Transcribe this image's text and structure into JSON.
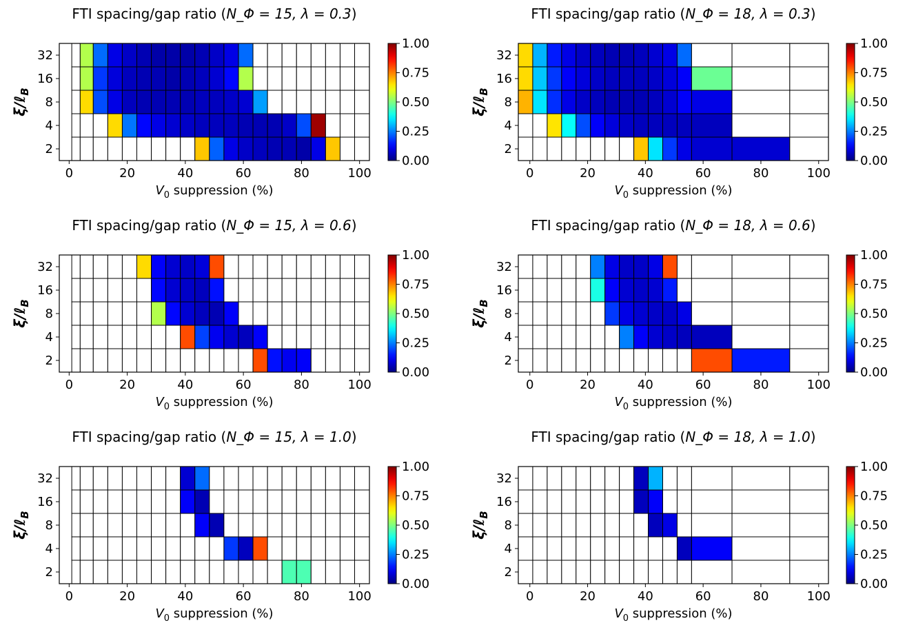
{
  "figure": {
    "colormap": "jet",
    "colorbar": {
      "min": 0,
      "max": 1,
      "ticks": [
        "1.00",
        "0.75",
        "0.50",
        "0.25",
        "0.00"
      ]
    },
    "x_ticks": [
      "0",
      "20",
      "40",
      "60",
      "80",
      "100"
    ],
    "y_ticks": [
      "32",
      "16",
      "8",
      "4",
      "2"
    ]
  },
  "chart_data": [
    {
      "type": "heatmap",
      "title_prefix": "FTI spacing/gap ratio (",
      "title_math": "N_Φ = 15, λ = 0.3",
      "title_suffix": ")",
      "N_phi": 15,
      "lambda": 0.3,
      "xlabel": "V_0 suppression (%)",
      "ylabel": "ξ/ℓ_B",
      "xlim": [
        -3.4,
        103.4
      ],
      "x_edges": [
        0.9,
        3.8,
        8.3,
        13.3,
        18.3,
        23.3,
        28.3,
        33.3,
        38.3,
        43.3,
        48.3,
        53.3,
        58.3,
        63.3,
        68.3,
        73.3,
        78.3,
        83.3,
        88.3,
        93.3,
        98.3,
        103.4
      ],
      "rows": [
        "32",
        "16",
        "8",
        "4",
        "2"
      ],
      "values": [
        [
          null,
          0.55,
          0.23,
          0.1,
          0.07,
          0.05,
          0.04,
          0.04,
          0.04,
          0.05,
          0.07,
          0.1,
          0.23,
          null,
          null,
          null,
          null,
          null,
          null,
          null,
          null
        ],
        [
          null,
          0.55,
          0.18,
          0.09,
          0.06,
          0.05,
          0.05,
          0.04,
          0.05,
          0.06,
          0.08,
          0.13,
          0.55,
          null,
          null,
          null,
          null,
          null,
          null,
          null,
          null
        ],
        [
          null,
          0.66,
          0.2,
          0.1,
          0.06,
          0.05,
          0.05,
          0.05,
          0.05,
          0.06,
          0.06,
          0.07,
          0.08,
          0.28,
          null,
          null,
          null,
          null,
          null,
          null,
          null
        ],
        [
          null,
          null,
          null,
          0.66,
          0.24,
          0.13,
          0.1,
          0.08,
          0.07,
          0.06,
          0.06,
          0.06,
          0.05,
          0.05,
          0.05,
          0.07,
          0.2,
          0.97,
          null,
          null,
          null
        ],
        [
          null,
          null,
          null,
          null,
          null,
          null,
          null,
          null,
          null,
          0.68,
          0.22,
          0.1,
          0.07,
          0.06,
          0.05,
          0.05,
          0.04,
          0.1,
          0.68,
          null,
          null
        ]
      ]
    },
    {
      "type": "heatmap",
      "title_prefix": "FTI spacing/gap ratio (",
      "title_math": "N_Φ = 18, λ = 0.3",
      "title_suffix": ")",
      "N_phi": 18,
      "lambda": 0.3,
      "xlabel": "V_0 suppression (%)",
      "ylabel": "ξ/ℓ_B",
      "xlim": [
        -4.0,
        103.4
      ],
      "x_edges": [
        -4.0,
        1.0,
        6.0,
        11.0,
        16.0,
        21.0,
        26.0,
        31.0,
        36.0,
        41.0,
        46.0,
        51.0,
        56.0,
        70.0,
        90.0,
        103.4
      ],
      "rows": [
        "32",
        "16",
        "8",
        "4",
        "2"
      ],
      "values": [
        [
          0.66,
          0.3,
          0.15,
          0.1,
          0.07,
          0.06,
          0.05,
          0.05,
          0.06,
          0.08,
          0.1,
          0.23,
          null,
          null,
          null
        ],
        [
          0.66,
          0.32,
          0.18,
          0.12,
          0.09,
          0.07,
          0.06,
          0.06,
          0.06,
          0.07,
          0.09,
          0.12,
          0.48,
          null,
          null
        ],
        [
          0.7,
          0.35,
          0.17,
          0.1,
          0.07,
          0.06,
          0.05,
          0.05,
          0.05,
          0.06,
          0.08,
          0.12,
          0.1,
          null,
          null
        ],
        [
          null,
          null,
          0.65,
          0.38,
          0.2,
          0.12,
          0.09,
          0.07,
          0.06,
          0.06,
          0.06,
          0.06,
          0.06,
          null,
          null
        ],
        [
          null,
          null,
          null,
          null,
          null,
          null,
          null,
          null,
          0.68,
          0.35,
          0.18,
          0.1,
          0.08,
          0.08,
          null
        ]
      ]
    },
    {
      "type": "heatmap",
      "title_prefix": "FTI spacing/gap ratio (",
      "title_math": "N_Φ = 15, λ = 0.6",
      "title_suffix": ")",
      "N_phi": 15,
      "lambda": 0.6,
      "xlabel": "V_0 suppression (%)",
      "ylabel": "ξ/ℓ_B",
      "xlim": [
        -3.4,
        103.4
      ],
      "x_edges": [
        0.9,
        3.8,
        8.3,
        13.3,
        18.3,
        23.3,
        28.3,
        33.3,
        38.3,
        43.3,
        48.3,
        53.3,
        58.3,
        63.3,
        68.3,
        73.3,
        78.3,
        83.3,
        88.3,
        93.3,
        98.3,
        103.4
      ],
      "rows": [
        "32",
        "16",
        "8",
        "4",
        "2"
      ],
      "values": [
        [
          null,
          null,
          null,
          null,
          null,
          0.66,
          0.12,
          0.08,
          0.07,
          0.09,
          0.8,
          null,
          null,
          null,
          null,
          null,
          null,
          null,
          null,
          null,
          null
        ],
        [
          null,
          null,
          null,
          null,
          null,
          null,
          0.13,
          0.08,
          0.07,
          0.06,
          0.14,
          null,
          null,
          null,
          null,
          null,
          null,
          null,
          null,
          null,
          null
        ],
        [
          null,
          null,
          null,
          null,
          null,
          null,
          0.55,
          0.13,
          0.08,
          0.06,
          0.05,
          0.12,
          null,
          null,
          null,
          null,
          null,
          null,
          null,
          null,
          null
        ],
        [
          null,
          null,
          null,
          null,
          null,
          null,
          null,
          null,
          0.8,
          0.19,
          0.11,
          0.08,
          0.06,
          0.12,
          null,
          null,
          null,
          null,
          null,
          null,
          null
        ],
        [
          null,
          null,
          null,
          null,
          null,
          null,
          null,
          null,
          null,
          null,
          null,
          null,
          null,
          0.8,
          0.14,
          0.11,
          0.12,
          null,
          null,
          null,
          null
        ]
      ]
    },
    {
      "type": "heatmap",
      "title_prefix": "FTI spacing/gap ratio (",
      "title_math": "N_Φ = 18, λ = 0.6",
      "title_suffix": ")",
      "N_phi": 18,
      "lambda": 0.6,
      "xlabel": "V_0 suppression (%)",
      "ylabel": "ξ/ℓ_B",
      "xlim": [
        -4.0,
        103.4
      ],
      "x_edges": [
        -4.0,
        1.0,
        6.0,
        11.0,
        16.0,
        21.0,
        26.0,
        31.0,
        36.0,
        41.0,
        46.0,
        51.0,
        56.0,
        70.0,
        90.0,
        103.4
      ],
      "rows": [
        "32",
        "16",
        "8",
        "4",
        "2"
      ],
      "values": [
        [
          null,
          null,
          null,
          null,
          null,
          0.25,
          0.1,
          0.07,
          0.07,
          0.1,
          0.8,
          null,
          null,
          null,
          null
        ],
        [
          null,
          null,
          null,
          null,
          null,
          0.4,
          0.12,
          0.08,
          0.07,
          0.08,
          0.15,
          null,
          null,
          null,
          null
        ],
        [
          null,
          null,
          null,
          null,
          null,
          null,
          0.18,
          0.1,
          0.08,
          0.07,
          0.07,
          0.1,
          null,
          null,
          null
        ],
        [
          null,
          null,
          null,
          null,
          null,
          null,
          null,
          0.25,
          0.12,
          0.08,
          0.07,
          0.06,
          0.06,
          null,
          null
        ],
        [
          null,
          null,
          null,
          null,
          null,
          null,
          null,
          null,
          null,
          null,
          null,
          null,
          0.8,
          0.15,
          null
        ]
      ]
    },
    {
      "type": "heatmap",
      "title_prefix": "FTI spacing/gap ratio (",
      "title_math": "N_Φ = 15, λ = 1.0",
      "title_suffix": ")",
      "N_phi": 15,
      "lambda": 1.0,
      "xlabel": "V_0 suppression (%)",
      "ylabel": "ξ/ℓ_B",
      "xlim": [
        -3.4,
        103.4
      ],
      "x_edges": [
        0.9,
        3.8,
        8.3,
        13.3,
        18.3,
        23.3,
        28.3,
        33.3,
        38.3,
        43.3,
        48.3,
        53.3,
        58.3,
        63.3,
        68.3,
        73.3,
        78.3,
        83.3,
        88.3,
        93.3,
        98.3,
        103.4
      ],
      "rows": [
        "32",
        "16",
        "8",
        "4",
        "2"
      ],
      "values": [
        [
          null,
          null,
          null,
          null,
          null,
          null,
          null,
          null,
          0.08,
          0.23,
          null,
          null,
          null,
          null,
          null,
          null,
          null,
          null,
          null,
          null,
          null
        ],
        [
          null,
          null,
          null,
          null,
          null,
          null,
          null,
          null,
          0.12,
          0.05,
          null,
          null,
          null,
          null,
          null,
          null,
          null,
          null,
          null,
          null,
          null
        ],
        [
          null,
          null,
          null,
          null,
          null,
          null,
          null,
          null,
          null,
          0.12,
          0.05,
          null,
          null,
          null,
          null,
          null,
          null,
          null,
          null,
          null,
          null
        ],
        [
          null,
          null,
          null,
          null,
          null,
          null,
          null,
          null,
          null,
          null,
          null,
          0.18,
          0.06,
          0.8,
          null,
          null,
          null,
          null,
          null,
          null,
          null
        ],
        [
          null,
          null,
          null,
          null,
          null,
          null,
          null,
          null,
          null,
          null,
          null,
          null,
          null,
          null,
          null,
          0.45,
          0.45,
          null,
          null,
          null,
          null
        ]
      ]
    },
    {
      "type": "heatmap",
      "title_prefix": "FTI spacing/gap ratio (",
      "title_math": "N_Φ = 18, λ = 1.0",
      "title_suffix": ")",
      "N_phi": 18,
      "lambda": 1.0,
      "xlabel": "V_0 suppression (%)",
      "ylabel": "ξ/ℓ_B",
      "xlim": [
        -4.0,
        103.4
      ],
      "x_edges": [
        -4.0,
        1.0,
        6.0,
        11.0,
        16.0,
        21.0,
        26.0,
        31.0,
        36.0,
        41.0,
        46.0,
        51.0,
        56.0,
        70.0,
        90.0,
        103.4
      ],
      "rows": [
        "32",
        "16",
        "8",
        "4",
        "2"
      ],
      "values": [
        [
          null,
          null,
          null,
          null,
          null,
          null,
          null,
          null,
          0.06,
          0.3,
          null,
          null,
          null,
          null,
          null
        ],
        [
          null,
          null,
          null,
          null,
          null,
          null,
          null,
          null,
          0.06,
          0.12,
          null,
          null,
          null,
          null,
          null
        ],
        [
          null,
          null,
          null,
          null,
          null,
          null,
          null,
          null,
          null,
          0.06,
          0.1,
          null,
          null,
          null,
          null
        ],
        [
          null,
          null,
          null,
          null,
          null,
          null,
          null,
          null,
          null,
          null,
          null,
          0.06,
          0.12,
          null,
          null
        ],
        [
          null,
          null,
          null,
          null,
          null,
          null,
          null,
          null,
          null,
          null,
          null,
          null,
          null,
          null,
          null
        ]
      ]
    }
  ]
}
